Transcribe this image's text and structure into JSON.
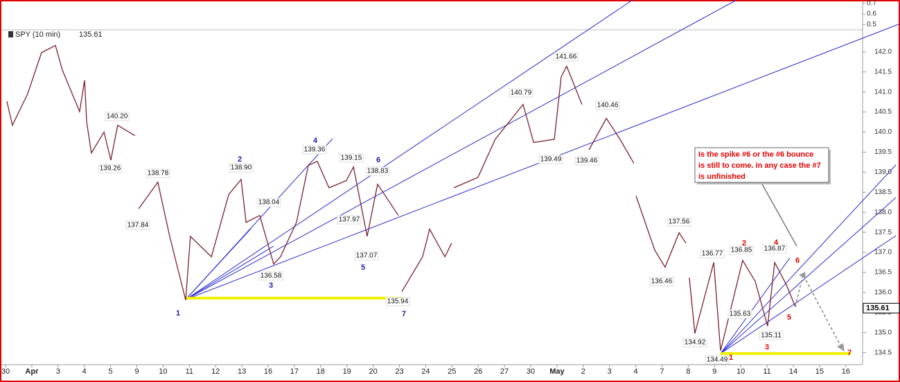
{
  "chart_data": {
    "type": "price",
    "series": [
      {
        "name": "SPY (10 min)",
        "color": "#7a1f2e",
        "x": [
          0.05,
          0.26,
          0.84,
          1.37,
          1.9,
          2.16,
          2.82,
          3.01,
          3.09,
          3.27,
          3.75,
          4.01,
          4.27,
          4.93,
          null,
          5.07,
          5.8,
          6.25,
          6.86,
          7.04,
          7.84,
          8.5,
          8.97,
          9.16,
          9.68,
          10.21,
          10.47,
          11.08,
          11.53,
          11.87,
          12.32,
          12.98,
          13.25,
          13.77,
          14.17,
          14.96,
          null,
          15.09,
          15.88,
          16.15,
          16.73,
          16.99,
          null,
          17.07,
          17.99,
          18.65,
          19.71,
          20.11,
          20.9,
          21.16,
          21.37,
          21.95,
          null,
          22.22,
          22.88,
          23.4,
          23.93,
          null,
          24.01,
          24.72,
          25.12,
          25.65,
          25.91,
          null,
          26.04,
          26.25,
          26.97,
          27.23,
          28.07,
          28.55,
          29.02,
          29.29,
          29.74,
          30.08
        ],
        "values": [
          140.77,
          140.17,
          140.95,
          141.98,
          142.16,
          141.55,
          140.51,
          141.29,
          140.25,
          139.48,
          140.0,
          139.3,
          140.17,
          139.91,
          null,
          138.09,
          138.75,
          137.4,
          135.81,
          137.4,
          136.89,
          138.44,
          138.82,
          137.75,
          137.92,
          136.71,
          136.89,
          137.75,
          139.17,
          139.27,
          138.61,
          138.79,
          139.13,
          137.4,
          138.7,
          137.92,
          null,
          136.02,
          136.89,
          137.58,
          136.89,
          137.23,
          null,
          138.61,
          138.87,
          139.82,
          140.69,
          139.74,
          139.82,
          141.38,
          141.64,
          140.69,
          null,
          139.56,
          140.34,
          139.82,
          139.22,
          null,
          138.41,
          137.06,
          136.63,
          137.49,
          137.23,
          null,
          136.37,
          134.98,
          136.75,
          134.55,
          136.8,
          136.28,
          135.16,
          136.75,
          136.19,
          135.64
        ]
      }
    ],
    "last_price": 135.61,
    "categories": [
      "30",
      "Apr",
      "3",
      "4",
      "5",
      "9",
      "10",
      "11",
      "12",
      "13",
      "16",
      "17",
      "18",
      "19",
      "20",
      "23",
      "24",
      "25",
      "26",
      "27",
      "30",
      "May",
      "2",
      "3",
      "4",
      "7",
      "8",
      "9",
      "10",
      "11",
      "14",
      "15",
      "16"
    ],
    "ylim": [
      134.2,
      142.55
    ],
    "yticks": [
      134.5,
      {
        "value": 135,
        "label": "135.0"
      },
      135.5,
      {
        "value": 136,
        "label": "136.0"
      },
      136.5,
      {
        "value": 137,
        "label": "137.0"
      },
      137.5,
      {
        "value": 138,
        "label": "138.0"
      },
      138.5,
      {
        "value": 139,
        "label": "139.0"
      },
      139.5,
      {
        "value": 140,
        "label": "140.0"
      },
      140.5,
      {
        "value": 141,
        "label": "141.0"
      },
      141.5,
      {
        "value": 142,
        "label": "142.0"
      }
    ],
    "indicator_ylim": [
      0.45,
      0.73
    ],
    "indicator_yticks": [
      0.7,
      0.6,
      0.5
    ],
    "price_labels": [
      "140.20",
      "139.26",
      "138.78",
      "137.84",
      "138.90",
      "138.04",
      "136.58",
      "139.36",
      "139.15",
      "138.83",
      "137.97",
      "137.07",
      "135.94",
      "140.79",
      "141.66",
      "139.49",
      "139.46",
      "140.46",
      "137.56",
      "136.46",
      "136.77",
      "136.85",
      "136.87",
      "135.63",
      "135.11",
      "134.92",
      "134.49"
    ],
    "wave_counts": [
      {
        "color": "#1c1ca8",
        "labels": [
          "1",
          "2",
          "3",
          "4",
          "5",
          "6",
          "7"
        ]
      },
      {
        "color": "#e00000",
        "labels": [
          "1",
          "2",
          "3",
          "4",
          "5",
          "6",
          "7"
        ]
      }
    ],
    "callout": [
      "Is the spike #6 or the #6 bounce",
      "is still to come. in any case the #7",
      "is unfinished"
    ]
  }
}
